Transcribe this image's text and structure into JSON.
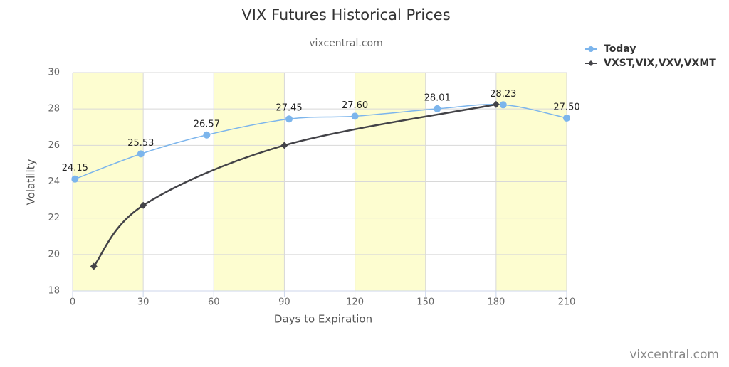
{
  "chart_data": {
    "type": "line",
    "title": "VIX Futures Historical Prices",
    "subtitle": "vixcentral.com",
    "credit": "vixcentral.com",
    "x_label": "Days to Expiration",
    "y_label": "Volatility",
    "xlim": [
      0,
      210
    ],
    "xticks": [
      0,
      30,
      60,
      90,
      120,
      150,
      180,
      210
    ],
    "ylim": [
      18,
      30
    ],
    "yticks": [
      18,
      20,
      22,
      24,
      26,
      28,
      30
    ],
    "grid": true,
    "legend": "top-right",
    "series": [
      {
        "name": "Today",
        "color": "#7cb5ec",
        "marker": "circle",
        "x": [
          1,
          29,
          57,
          92,
          120,
          155,
          183,
          210
        ],
        "values": [
          24.15,
          25.53,
          26.57,
          27.45,
          27.6,
          28.01,
          28.23,
          27.5
        ],
        "value_labels": [
          "24.15",
          "25.53",
          "26.57",
          "27.45",
          "27.60",
          "28.01",
          "28.23",
          "27.50"
        ]
      },
      {
        "name": "VXST,VIX,VXV,VXMT",
        "color": "#434348",
        "marker": "diamond",
        "x": [
          9,
          30,
          90,
          180
        ],
        "values": [
          19.35,
          22.7,
          26.0,
          28.25
        ]
      }
    ]
  }
}
